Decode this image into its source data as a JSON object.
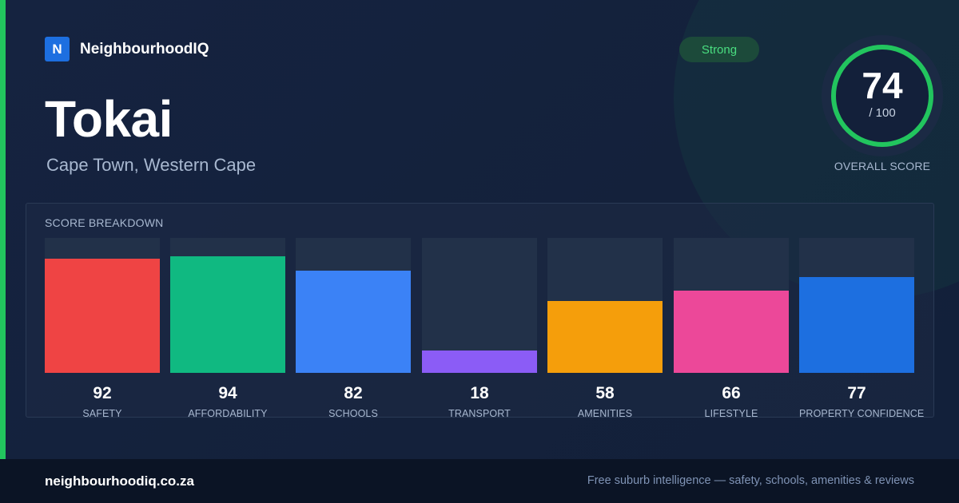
{
  "brand": {
    "mark": "N",
    "name": "NeighbourhoodIQ"
  },
  "suburb": {
    "name": "Tokai",
    "location": "Cape Town, Western Cape"
  },
  "rating": {
    "badge": "Strong",
    "score": "74",
    "max": "/ 100",
    "label": "OVERALL SCORE",
    "score_value": 74
  },
  "breakdown": {
    "title": "SCORE BREAKDOWN",
    "categories": [
      {
        "label": "SAFETY",
        "score": "92",
        "value": 92,
        "color": "#ef4444"
      },
      {
        "label": "AFFORDABILITY",
        "score": "94",
        "value": 94,
        "color": "#10b981"
      },
      {
        "label": "SCHOOLS",
        "score": "82",
        "value": 82,
        "color": "#3b82f6"
      },
      {
        "label": "TRANSPORT",
        "score": "18",
        "value": 18,
        "color": "#8b5cf6"
      },
      {
        "label": "AMENITIES",
        "score": "58",
        "value": 58,
        "color": "#f59e0b"
      },
      {
        "label": "LIFESTYLE",
        "score": "66",
        "value": 66,
        "color": "#ec4899"
      },
      {
        "label": "PROPERTY CONFIDENCE",
        "score": "77",
        "value": 77,
        "color": "#1d6fe0"
      }
    ]
  },
  "colors": {
    "accent": "#22c55e",
    "brand": "#1d6fe0",
    "background": "#13203a"
  },
  "footer": {
    "url": "neighbourhoodiq.co.za",
    "tagline": "Free suburb intelligence — safety, schools, amenities & reviews"
  }
}
